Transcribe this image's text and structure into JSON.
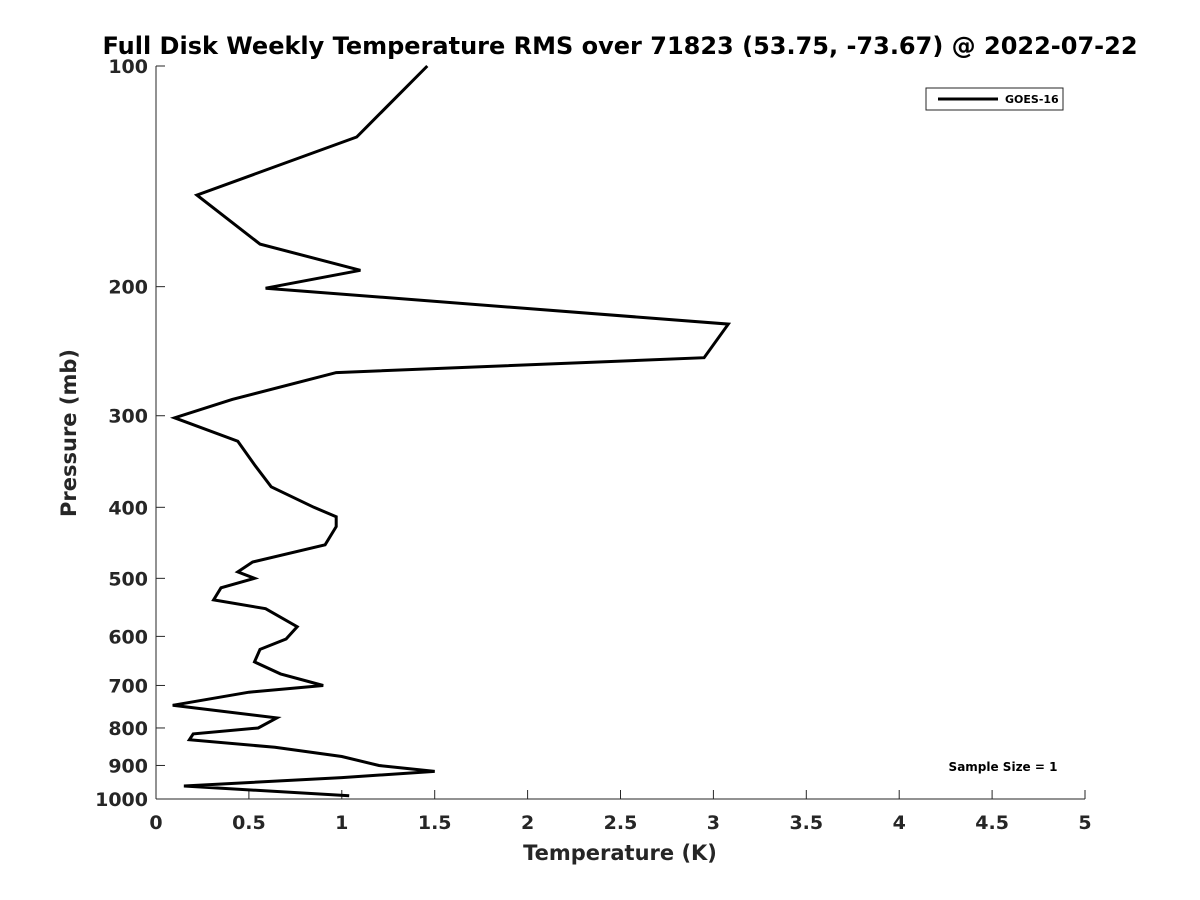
{
  "chart_data": {
    "type": "line",
    "title": "Full Disk Weekly Temperature RMS over 71823 (53.75, -73.67) @ 2022-07-22",
    "xlabel": "Temperature (K)",
    "ylabel": "Pressure (mb)",
    "xlim": [
      0,
      5
    ],
    "ylim": [
      100,
      1000
    ],
    "y_scale": "log",
    "y_reversed": true,
    "xticks": [
      0,
      0.5,
      1,
      1.5,
      2,
      2.5,
      3,
      3.5,
      4,
      4.5,
      5
    ],
    "xtick_labels": [
      "0",
      "0.5",
      "1",
      "1.5",
      "2",
      "2.5",
      "3",
      "3.5",
      "4",
      "4.5",
      "5"
    ],
    "yticks": [
      100,
      200,
      300,
      400,
      500,
      600,
      700,
      800,
      900,
      1000
    ],
    "ytick_labels": [
      "100",
      "200",
      "300",
      "400",
      "500",
      "600",
      "700",
      "800",
      "900",
      "1000"
    ],
    "grid": false,
    "legend_position": "top-right",
    "series": [
      {
        "name": "GOES-16",
        "color": "#000000",
        "x": [
          1.46,
          1.08,
          0.22,
          0.56,
          1.1,
          0.59,
          3.08,
          2.95,
          0.97,
          0.41,
          0.1,
          0.44,
          0.53,
          0.62,
          0.85,
          0.97,
          0.97,
          0.91,
          0.52,
          0.44,
          0.53,
          0.35,
          0.31,
          0.59,
          0.76,
          0.7,
          0.56,
          0.53,
          0.67,
          0.9,
          0.5,
          0.09,
          0.65,
          0.55,
          0.2,
          0.18,
          0.64,
          1.0,
          1.2,
          1.5,
          1.0,
          0.15,
          1.04
        ],
        "y": [
          100,
          125,
          150,
          175,
          190,
          201,
          225,
          250,
          262,
          285,
          302,
          325,
          350,
          375,
          400,
          412,
          425,
          450,
          475,
          490,
          500,
          515,
          535,
          550,
          582,
          605,
          625,
          650,
          675,
          700,
          715,
          745,
          775,
          800,
          815,
          830,
          850,
          875,
          900,
          917,
          935,
          960,
          990
        ]
      }
    ],
    "annotation": "Sample Size = 1"
  }
}
